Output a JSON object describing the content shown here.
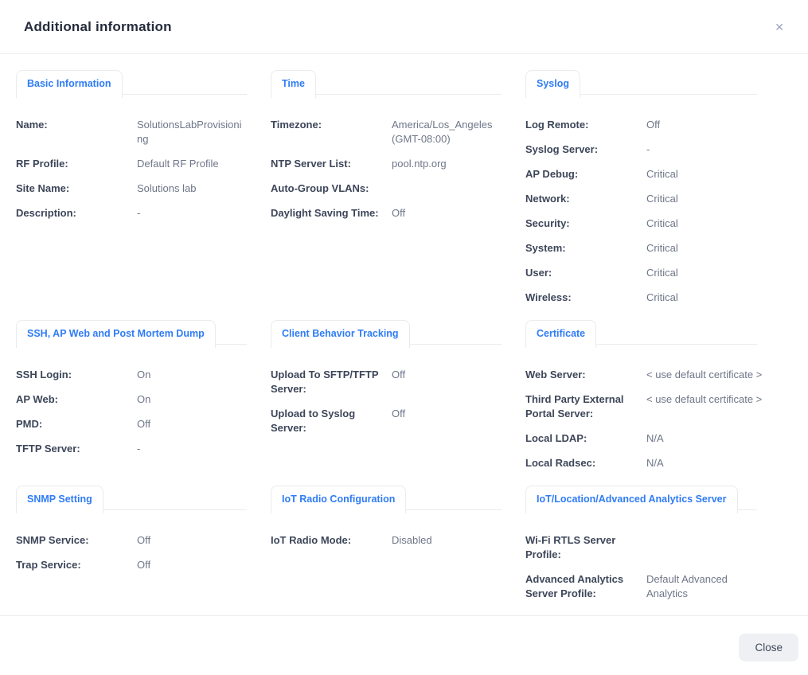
{
  "modal": {
    "title": "Additional information",
    "close_icon": "✕",
    "footer": {
      "close_label": "Close"
    },
    "colors": {
      "accent_blue": "#2f7cf6",
      "label_text": "#3d4659",
      "value_text": "#6e7688",
      "border": "#e9ebef",
      "close_button_bg": "#eef0f3"
    }
  },
  "sections": [
    {
      "tab": "Basic Information",
      "rows": [
        {
          "label": "Name:",
          "value": "SolutionsLabProvisioning"
        },
        {
          "label": "RF Profile:",
          "value": "Default RF Profile"
        },
        {
          "label": "Site Name:",
          "value": "Solutions lab"
        },
        {
          "label": "Description:",
          "value": "-"
        }
      ]
    },
    {
      "tab": "Time",
      "rows": [
        {
          "label": "Timezone:",
          "value": "America/Los_Angeles (GMT-08:00)"
        },
        {
          "label": "NTP Server List:",
          "value": "pool.ntp.org"
        },
        {
          "label": "Auto-Group VLANs:",
          "value": ""
        },
        {
          "label": "Daylight Saving Time:",
          "value": "Off"
        }
      ]
    },
    {
      "tab": "Syslog",
      "rows": [
        {
          "label": "Log Remote:",
          "value": "Off"
        },
        {
          "label": "Syslog Server:",
          "value": "-"
        },
        {
          "label": "AP Debug:",
          "value": "Critical"
        },
        {
          "label": "Network:",
          "value": "Critical"
        },
        {
          "label": "Security:",
          "value": "Critical"
        },
        {
          "label": "System:",
          "value": "Critical"
        },
        {
          "label": "User:",
          "value": "Critical"
        },
        {
          "label": "Wireless:",
          "value": "Critical"
        }
      ]
    },
    {
      "tab": "SSH, AP Web and Post Mortem Dump",
      "rows": [
        {
          "label": "SSH Login:",
          "value": "On"
        },
        {
          "label": "AP Web:",
          "value": "On"
        },
        {
          "label": "PMD:",
          "value": "Off"
        },
        {
          "label": "TFTP Server:",
          "value": "-"
        }
      ]
    },
    {
      "tab": "Client Behavior Tracking",
      "rows": [
        {
          "label": "Upload To SFTP/TFTP Server:",
          "value": "Off"
        },
        {
          "label": "Upload to Syslog Server:",
          "value": "Off"
        }
      ]
    },
    {
      "tab": "Certificate",
      "rows": [
        {
          "label": "Web Server:",
          "value": "< use default certificate >"
        },
        {
          "label": "Third Party External Portal Server:",
          "value": "< use default certificate >"
        },
        {
          "label": "Local LDAP:",
          "value": "N/A"
        },
        {
          "label": "Local Radsec:",
          "value": "N/A"
        }
      ]
    },
    {
      "tab": "SNMP Setting",
      "rows": [
        {
          "label": "SNMP Service:",
          "value": "Off"
        },
        {
          "label": "Trap Service:",
          "value": "Off"
        }
      ]
    },
    {
      "tab": "IoT Radio Configuration",
      "rows": [
        {
          "label": "IoT Radio Mode:",
          "value": "Disabled"
        }
      ]
    },
    {
      "tab": "IoT/Location/Advanced Analytics Server",
      "rows": [
        {
          "label": "Wi-Fi RTLS Server Profile:",
          "value": ""
        },
        {
          "label": "Advanced Analytics Server Profile:",
          "value": "Default Advanced Analytics"
        }
      ]
    }
  ]
}
